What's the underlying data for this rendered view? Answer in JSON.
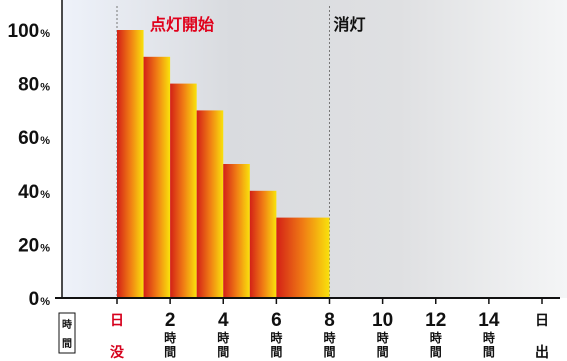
{
  "chart_data": {
    "type": "bar",
    "y_axis": {
      "range": [
        0,
        100
      ],
      "ticks": [
        0,
        20,
        40,
        60,
        80,
        100
      ],
      "unit": "%"
    },
    "x_axis": {
      "range": [
        0,
        16
      ],
      "label": "時間",
      "ticks": [
        {
          "x": 0,
          "text": "日没",
          "color": "#d6001c"
        },
        {
          "x": 2,
          "value": "2",
          "unit": "時間"
        },
        {
          "x": 4,
          "value": "4",
          "unit": "時間"
        },
        {
          "x": 6,
          "value": "6",
          "unit": "時間"
        },
        {
          "x": 8,
          "value": "8",
          "unit": "時間"
        },
        {
          "x": 10,
          "value": "10",
          "unit": "時間"
        },
        {
          "x": 12,
          "value": "12",
          "unit": "時間"
        },
        {
          "x": 14,
          "value": "14",
          "unit": "時間"
        },
        {
          "x": 16,
          "text": "日出",
          "color": "#111111"
        }
      ]
    },
    "bars": [
      {
        "start": 0,
        "end": 1,
        "value": 100
      },
      {
        "start": 1,
        "end": 2,
        "value": 90
      },
      {
        "start": 2,
        "end": 3,
        "value": 80
      },
      {
        "start": 3,
        "end": 4,
        "value": 70
      },
      {
        "start": 4,
        "end": 5,
        "value": 50
      },
      {
        "start": 5,
        "end": 6,
        "value": 40
      },
      {
        "start": 6,
        "end": 8,
        "value": 30
      }
    ],
    "annotations": [
      {
        "x": 0,
        "text": "点灯開始",
        "color": "#e0001b"
      },
      {
        "x": 8,
        "text": "消灯",
        "color": "#111111"
      }
    ],
    "grid": false,
    "legend": "none",
    "colors": {
      "bar_gradient": [
        "#d32017",
        "#f07c14",
        "#f9e20c"
      ],
      "background_gradient": [
        "#eef2fa",
        "#d9dbdf",
        "#dfe0e2",
        "#f4f5f6"
      ],
      "axis": "#111111",
      "marker_line": "#777777"
    }
  }
}
